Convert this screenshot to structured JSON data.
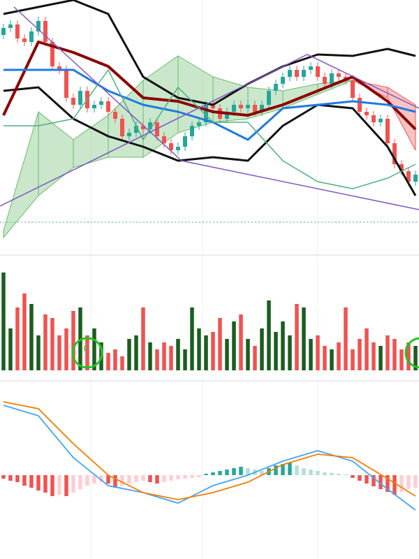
{
  "chart_data": [
    {
      "type": "candlestick",
      "xlim": [
        -0.5,
        59.5
      ],
      "ylim": [
        0,
        345
      ],
      "up_color": "#26a69a",
      "down_color": "#ef5350",
      "open": [
        295,
        305,
        310,
        290,
        285,
        300,
        315,
        285,
        250,
        245,
        205,
        195,
        215,
        190,
        195,
        200,
        185,
        175,
        150,
        155,
        165,
        160,
        170,
        150,
        140,
        130,
        135,
        150,
        165,
        170,
        195,
        190,
        175,
        185,
        195,
        190,
        195,
        185,
        195,
        215,
        225,
        235,
        245,
        235,
        245,
        250,
        235,
        225,
        240,
        235,
        230,
        205,
        185,
        180,
        170,
        175,
        140,
        110,
        100,
        85
      ],
      "close": [
        305,
        310,
        290,
        285,
        300,
        315,
        285,
        250,
        245,
        205,
        195,
        215,
        190,
        195,
        200,
        185,
        175,
        150,
        155,
        165,
        160,
        170,
        150,
        140,
        130,
        135,
        150,
        165,
        170,
        195,
        190,
        175,
        185,
        195,
        190,
        195,
        185,
        195,
        215,
        225,
        235,
        245,
        235,
        245,
        250,
        235,
        225,
        240,
        235,
        230,
        205,
        185,
        180,
        170,
        175,
        140,
        110,
        100,
        85,
        95
      ],
      "high": [
        311,
        316,
        316,
        296,
        306,
        321,
        321,
        291,
        256,
        251,
        211,
        221,
        221,
        201,
        206,
        206,
        191,
        181,
        161,
        171,
        171,
        176,
        176,
        156,
        146,
        141,
        156,
        171,
        176,
        201,
        201,
        196,
        191,
        201,
        201,
        201,
        201,
        201,
        221,
        231,
        241,
        251,
        251,
        251,
        256,
        256,
        241,
        246,
        246,
        241,
        236,
        211,
        191,
        186,
        181,
        181,
        146,
        116,
        106,
        101
      ],
      "low": [
        289,
        299,
        284,
        279,
        279,
        294,
        279,
        244,
        239,
        199,
        189,
        189,
        184,
        184,
        189,
        179,
        169,
        144,
        144,
        149,
        154,
        154,
        144,
        134,
        124,
        124,
        129,
        144,
        159,
        164,
        184,
        169,
        169,
        179,
        184,
        184,
        179,
        179,
        189,
        209,
        219,
        229,
        229,
        229,
        239,
        229,
        219,
        219,
        229,
        224,
        199,
        179,
        174,
        164,
        164,
        134,
        104,
        94,
        79,
        79
      ],
      "overlay_x": [
        0,
        5,
        10,
        15,
        20,
        25,
        30,
        35,
        40,
        45,
        50,
        55,
        59
      ],
      "cloud": {
        "span_a": [
          15,
          185,
          145,
          180,
          230,
          265,
          235,
          220,
          215,
          225,
          230,
          205,
          130
        ],
        "span_b": [
          5,
          65,
          105,
          120,
          120,
          155,
          170,
          175,
          190,
          210,
          230,
          220,
          195
        ],
        "up_color": "#66bb6a",
        "down_color": "#ef5350"
      },
      "overlays": [
        {
          "color": "#111111",
          "width": 3,
          "values": [
            325,
            335,
            345,
            325,
            235,
            205,
            195,
            225,
            250,
            267,
            265,
            275,
            265
          ]
        },
        {
          "color": "#111111",
          "width": 3,
          "values": [
            215,
            220,
            175,
            150,
            135,
            115,
            120,
            115,
            165,
            195,
            190,
            135,
            65
          ]
        },
        {
          "color": "#8b0000",
          "width": 4,
          "values": [
            180,
            285,
            270,
            250,
            205,
            200,
            185,
            180,
            195,
            215,
            235,
            200,
            160
          ]
        },
        {
          "color": "#1e7be0",
          "width": 3,
          "values": [
            245,
            245,
            245,
            215,
            195,
            185,
            170,
            145,
            190,
            195,
            200,
            195,
            185
          ]
        },
        {
          "color": "#4caf82",
          "width": 1.5,
          "values": [
            165,
            165,
            175,
            245,
            145,
            220,
            170,
            170,
            115,
            85,
            75,
            90,
            110
          ]
        }
      ]
    },
    {
      "type": "bar",
      "xlim": [
        -0.5,
        59.5
      ],
      "ylim": [
        0,
        145
      ],
      "up_color": "#1b5e20",
      "down_color": "#ef5350",
      "annotation": "F",
      "values": [
        140,
        60,
        90,
        110,
        95,
        50,
        80,
        75,
        50,
        60,
        85,
        90,
        50,
        60,
        40,
        25,
        30,
        20,
        45,
        50,
        90,
        40,
        30,
        40,
        35,
        45,
        30,
        90,
        60,
        50,
        55,
        75,
        45,
        70,
        80,
        45,
        35,
        60,
        100,
        55,
        70,
        50,
        95,
        90,
        45,
        50,
        35,
        30,
        40,
        90,
        30,
        45,
        60,
        40,
        35,
        50,
        45,
        30,
        40,
        35
      ]
    },
    {
      "type": "macd",
      "xlim": [
        -0.5,
        59.5
      ],
      "ylim": [
        -120,
        120
      ],
      "x": [
        0,
        5,
        10,
        15,
        20,
        25,
        30,
        35,
        40,
        45,
        50,
        55,
        59
      ],
      "series": [
        {
          "color": "#42a5f5",
          "values": [
            100,
            85,
            25,
            -15,
            -25,
            -40,
            -15,
            0,
            20,
            35,
            20,
            -20,
            -50
          ]
        },
        {
          "color": "#f57c00",
          "values": [
            105,
            95,
            45,
            0,
            -25,
            -35,
            -25,
            -10,
            15,
            30,
            25,
            -5,
            -30
          ]
        }
      ],
      "histogram": [
        -5,
        -8,
        -10,
        -15,
        -18,
        -22,
        -25,
        -30,
        -28,
        -30,
        -25,
        -20,
        -15,
        -12,
        -10,
        -12,
        -18,
        -15,
        -12,
        -10,
        -8,
        -10,
        -12,
        -10,
        -8,
        -6,
        -5,
        -4,
        -3,
        2,
        4,
        6,
        8,
        10,
        12,
        10,
        8,
        6,
        10,
        14,
        16,
        18,
        14,
        10,
        8,
        6,
        4,
        3,
        2,
        1,
        -4,
        -8,
        -12,
        -16,
        -20,
        -24,
        -28,
        -24,
        -20,
        -18
      ],
      "hist_colors": {
        "pos_up": "#26a69a",
        "pos_down": "#b2dfdb",
        "neg_down": "#ef5350",
        "neg_up": "#ffcdd2"
      }
    }
  ]
}
